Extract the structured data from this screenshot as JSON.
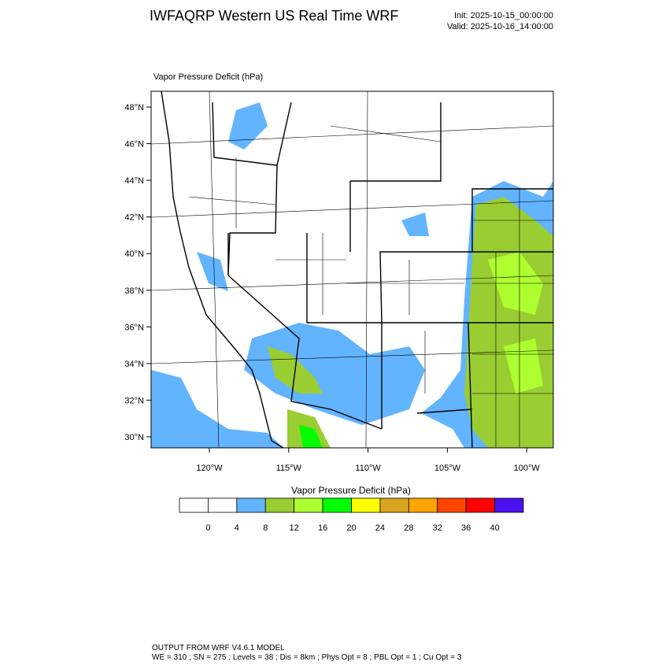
{
  "header": {
    "title": "IWFAQRP Western US Real Time WRF",
    "init": "Init: 2025-10-15_00:00:00",
    "valid": "Valid: 2025-10-16_14:00:00"
  },
  "map": {
    "subtitle": "Vapor Pressure Deficit   (hPa)",
    "lat_labels": [
      "48°N",
      "46°N",
      "44°N",
      "42°N",
      "40°N",
      "38°N",
      "36°N",
      "34°N",
      "32°N",
      "30°N"
    ],
    "lon_labels": [
      "120°W",
      "115°W",
      "110°W",
      "105°W",
      "100°W"
    ]
  },
  "colorbar": {
    "title": "Vapor Pressure Deficit  (hPa)",
    "colors": [
      "#ffffff",
      "#ffffff",
      "#63b4ff",
      "#9acd32",
      "#adff2f",
      "#00ff00",
      "#ffff00",
      "#daa520",
      "#ffa500",
      "#ff4500",
      "#ff0000",
      "#4b10f0"
    ],
    "labels": [
      0,
      4,
      8,
      12,
      16,
      20,
      24,
      28,
      32,
      36,
      40
    ]
  },
  "footer": {
    "line1": "OUTPUT FROM WRF V4.6.1 MODEL",
    "line2": "WE = 310 ; SN = 275 ; Levels = 38 ; Dis = 8km ; Phys Opt = 8 ; PBL Opt = 1 ; Cu Opt = 3"
  }
}
